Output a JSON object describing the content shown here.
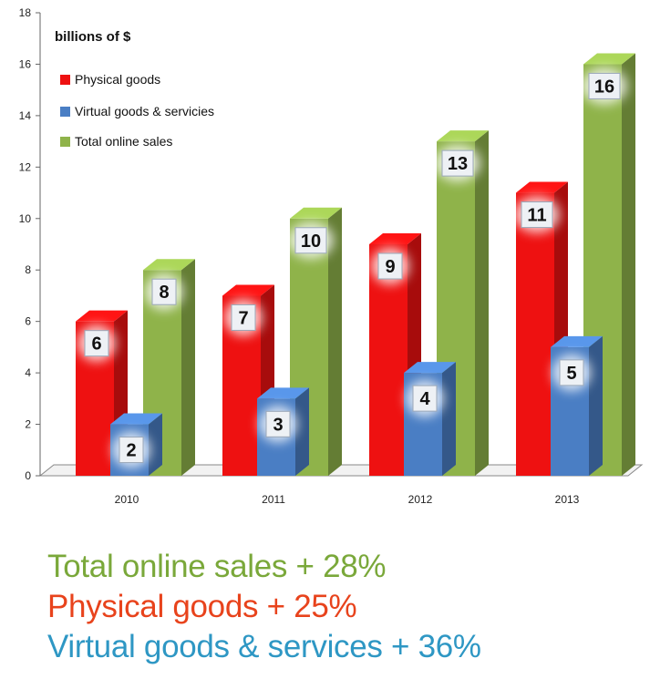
{
  "chart_data": {
    "type": "bar",
    "ylabel": "billions of $",
    "categories": [
      "2010",
      "2011",
      "2012",
      "2013"
    ],
    "ylim": [
      0,
      18
    ],
    "yticks": [
      "0",
      "2",
      "4",
      "6",
      "8",
      "10",
      "12",
      "14",
      "16",
      "18"
    ],
    "grid": false,
    "legend_position": "top-left",
    "series": [
      {
        "name": "Physical goods",
        "values": [
          6,
          7,
          9,
          11
        ],
        "labels": [
          "6",
          "7",
          "9",
          "11"
        ],
        "color": "#ee1111"
      },
      {
        "name": "Virtual goods & servicies",
        "values": [
          2,
          3,
          4,
          5
        ],
        "labels": [
          "2",
          "3",
          "4",
          "5"
        ],
        "color": "#4a7ec4"
      },
      {
        "name": "Total online sales",
        "values": [
          8,
          10,
          13,
          16
        ],
        "labels": [
          "8",
          "10",
          "13",
          "16"
        ],
        "color": "#8fb34a"
      }
    ]
  },
  "summary": [
    {
      "text": "Total online sales + 28%",
      "color": "#7aa83a"
    },
    {
      "text": "Physical goods + 25%",
      "color": "#e8431c"
    },
    {
      "text": "Virtual goods & services + 36%",
      "color": "#2e97c4"
    }
  ]
}
